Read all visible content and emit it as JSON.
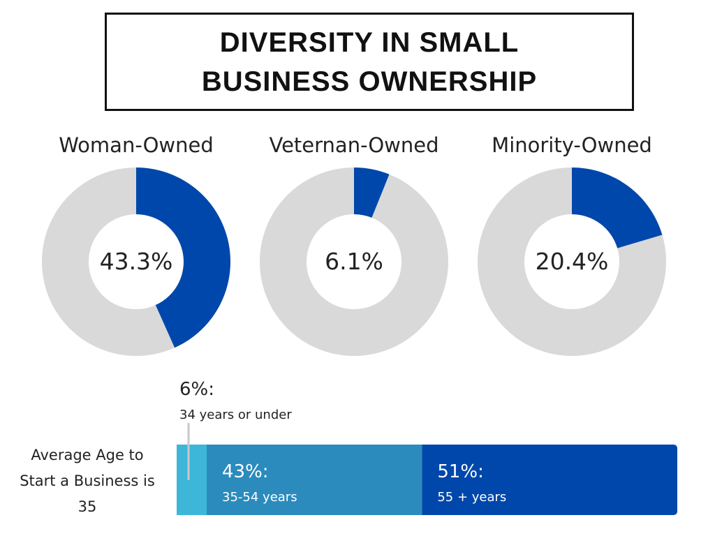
{
  "title": "DIVERSITY IN SMALL BUSINESS OWNERSHIP",
  "chart_data": [
    {
      "type": "donut",
      "title": "Woman-Owned",
      "values": [
        43.3
      ],
      "value_labels": [
        "43.3%"
      ],
      "color": "#0047ab",
      "track_color": "#d9d9d9"
    },
    {
      "type": "donut",
      "title": "Veternan-Owned",
      "values": [
        6.1
      ],
      "value_labels": [
        "6.1%"
      ],
      "color": "#0047ab",
      "track_color": "#d9d9d9"
    },
    {
      "type": "donut",
      "title": "Minority-Owned",
      "values": [
        20.4
      ],
      "value_labels": [
        "20.4%"
      ],
      "color": "#0047ab",
      "track_color": "#d9d9d9"
    },
    {
      "type": "bar",
      "orientation": "horizontal",
      "stacked": true,
      "annotation": "Average Age to Start a Business is 35",
      "categories": [
        "34 years or under",
        "35-54 years",
        "55 + years"
      ],
      "values": [
        6,
        43,
        51
      ],
      "value_labels": [
        "6%:",
        "43%:",
        "51%:"
      ],
      "colors": [
        "#3db6d8",
        "#2b8bbd",
        "#0047ab"
      ]
    }
  ]
}
